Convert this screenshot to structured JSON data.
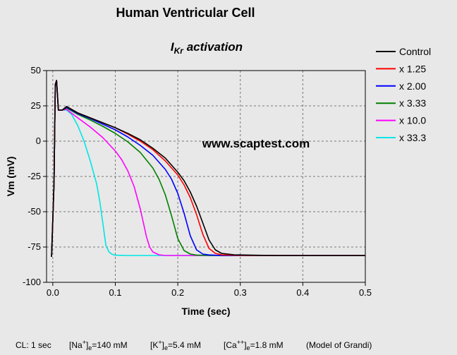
{
  "chart_data": {
    "type": "line",
    "title": "Human Ventricular Cell",
    "subtitle_main": "I",
    "subtitle_sub": "Kr",
    "subtitle_rest": " activation",
    "watermark": "www.scaptest.com",
    "xlabel": "Time (sec)",
    "ylabel": "Vm (mV)",
    "xlim": [
      -0.01,
      0.5
    ],
    "ylim": [
      -100,
      50
    ],
    "xticks": [
      "0.0",
      "0.1",
      "0.2",
      "0.3",
      "0.4",
      "0.5"
    ],
    "xtick_values": [
      0,
      0.1,
      0.2,
      0.3,
      0.4,
      0.5
    ],
    "yticks": [
      "50",
      "25",
      "0",
      "-25",
      "-50",
      "-75",
      "-100"
    ],
    "ytick_values": [
      50,
      25,
      0,
      -25,
      -50,
      -75,
      -100
    ],
    "grid": true,
    "legend_position": "top-right",
    "series": [
      {
        "name": "Control",
        "color": "#000000",
        "x": [
          -0.002,
          0.002,
          0.004,
          0.006,
          0.009,
          0.015,
          0.022,
          0.04,
          0.06,
          0.08,
          0.1,
          0.12,
          0.14,
          0.16,
          0.18,
          0.2,
          0.21,
          0.22,
          0.23,
          0.24,
          0.25,
          0.26,
          0.27,
          0.29,
          0.32,
          0.36,
          0.4,
          0.5
        ],
        "y": [
          -82,
          -30,
          40,
          43,
          22,
          22,
          24.5,
          20,
          16.5,
          13,
          9.5,
          5.5,
          1,
          -5,
          -12,
          -22,
          -28,
          -36,
          -46,
          -58,
          -70,
          -77,
          -79.5,
          -80.5,
          -80.8,
          -81,
          -81,
          -81
        ]
      },
      {
        "name": "x 1.25",
        "color": "#ff0000",
        "x": [
          -0.002,
          0.002,
          0.004,
          0.006,
          0.009,
          0.015,
          0.022,
          0.04,
          0.06,
          0.08,
          0.1,
          0.12,
          0.14,
          0.16,
          0.18,
          0.2,
          0.21,
          0.22,
          0.23,
          0.24,
          0.25,
          0.26,
          0.27,
          0.29,
          0.32,
          0.36,
          0.4,
          0.5
        ],
        "y": [
          -82,
          -30,
          40,
          43,
          22,
          22,
          24.5,
          20,
          16.5,
          13,
          9.5,
          5,
          0,
          -6,
          -14,
          -24,
          -31,
          -40,
          -52,
          -66,
          -76,
          -79.5,
          -80.5,
          -80.8,
          -81,
          -81,
          -81,
          -81
        ]
      },
      {
        "name": "x 2.00",
        "color": "#0000ff",
        "x": [
          -0.002,
          0.002,
          0.004,
          0.006,
          0.009,
          0.015,
          0.022,
          0.04,
          0.06,
          0.08,
          0.1,
          0.12,
          0.14,
          0.16,
          0.18,
          0.19,
          0.2,
          0.21,
          0.22,
          0.23,
          0.24,
          0.25,
          0.27,
          0.3,
          0.35,
          0.5
        ],
        "y": [
          -82,
          -30,
          40,
          43,
          22,
          22,
          24,
          19.5,
          16,
          12,
          8,
          3,
          -3,
          -10,
          -20,
          -27,
          -37,
          -51,
          -67,
          -77,
          -80,
          -80.6,
          -81,
          -81,
          -81,
          -81
        ]
      },
      {
        "name": "x 3.33",
        "color": "#008000",
        "x": [
          -0.002,
          0.002,
          0.004,
          0.006,
          0.009,
          0.015,
          0.022,
          0.04,
          0.06,
          0.08,
          0.1,
          0.12,
          0.14,
          0.16,
          0.17,
          0.18,
          0.19,
          0.2,
          0.21,
          0.22,
          0.23,
          0.25,
          0.3,
          0.5
        ],
        "y": [
          -82,
          -30,
          40,
          43,
          22,
          22,
          23.5,
          19,
          15,
          10.5,
          5.5,
          -0.5,
          -8,
          -19,
          -27,
          -38,
          -53,
          -69,
          -77.5,
          -80,
          -80.7,
          -81,
          -81,
          -81
        ]
      },
      {
        "name": "x 10.0",
        "color": "#ff00ff",
        "x": [
          -0.002,
          0.002,
          0.004,
          0.006,
          0.009,
          0.015,
          0.022,
          0.04,
          0.06,
          0.08,
          0.1,
          0.11,
          0.12,
          0.13,
          0.14,
          0.145,
          0.15,
          0.155,
          0.16,
          0.17,
          0.18,
          0.2,
          0.25,
          0.5
        ],
        "y": [
          -82,
          -30,
          40,
          43,
          22,
          22,
          22.5,
          16.5,
          10,
          2.5,
          -7,
          -13,
          -21,
          -32,
          -48,
          -58,
          -68,
          -75,
          -78.5,
          -80.5,
          -81,
          -81,
          -81,
          -81
        ]
      },
      {
        "name": "x 33.3",
        "color": "#00e5e5",
        "x": [
          -0.002,
          0.002,
          0.004,
          0.006,
          0.009,
          0.015,
          0.022,
          0.03,
          0.04,
          0.05,
          0.06,
          0.07,
          0.075,
          0.08,
          0.085,
          0.09,
          0.095,
          0.1,
          0.12,
          0.15,
          0.2,
          0.5
        ],
        "y": [
          -82,
          -30,
          40,
          43,
          22,
          22,
          22,
          19,
          11,
          0,
          -14,
          -30,
          -42,
          -58,
          -74,
          -78.5,
          -80.2,
          -80.8,
          -81,
          -81,
          -81,
          -81
        ]
      }
    ]
  },
  "footer": {
    "cl": "CL: 1 sec",
    "na": "[Na",
    "na_sup": "+",
    "na_sub": "e",
    "na_val": "=140 mM",
    "k": "[K",
    "k_sup": "+",
    "k_sub": "e",
    "k_val": "=5.4 mM",
    "ca": "[Ca",
    "ca_sup": "++",
    "ca_sub": "e",
    "ca_val": "=1.8 mM",
    "model": "(Model of Grandi)"
  }
}
